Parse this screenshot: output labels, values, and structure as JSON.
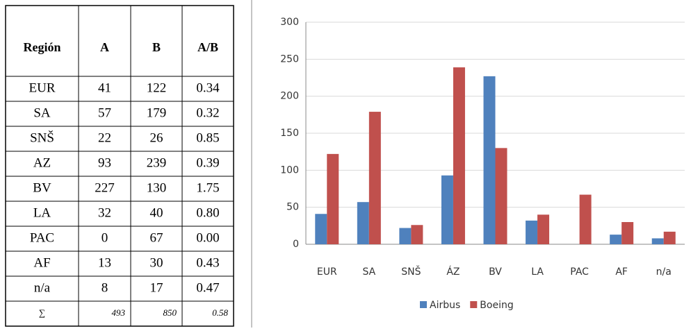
{
  "table": {
    "header": [
      "Región",
      "A",
      "B",
      "A/B"
    ],
    "rows": [
      [
        "EUR",
        "41",
        "122",
        "0.34"
      ],
      [
        "SA",
        "57",
        "179",
        "0.32"
      ],
      [
        "SNŠ",
        "22",
        "26",
        "0.85"
      ],
      [
        "AZ",
        "93",
        "239",
        "0.39"
      ],
      [
        "BV",
        "227",
        "130",
        "1.75"
      ],
      [
        "LA",
        "32",
        "40",
        "0.80"
      ],
      [
        "PAC",
        "0",
        "67",
        "0.00"
      ],
      [
        "AF",
        "13",
        "30",
        "0.43"
      ],
      [
        "n/a",
        "8",
        "17",
        "0.47"
      ]
    ],
    "total": [
      "∑",
      "493",
      "850",
      "0.58"
    ]
  },
  "chart_data": {
    "type": "bar",
    "categories": [
      "EUR",
      "SA",
      "SNŠ",
      "ÁZ",
      "BV",
      "LA",
      "PAC",
      "AF",
      "n/a"
    ],
    "series": [
      {
        "name": "Airbus",
        "color": "#4f81bd",
        "values": [
          41,
          57,
          22,
          93,
          227,
          32,
          0,
          13,
          8
        ]
      },
      {
        "name": "Boeing",
        "color": "#c0504d",
        "values": [
          122,
          179,
          26,
          239,
          130,
          40,
          67,
          30,
          17
        ]
      }
    ],
    "ylim": [
      0,
      300
    ],
    "yticks": [
      0,
      50,
      100,
      150,
      200,
      250,
      300
    ],
    "grid": true,
    "legend": "bottom"
  }
}
